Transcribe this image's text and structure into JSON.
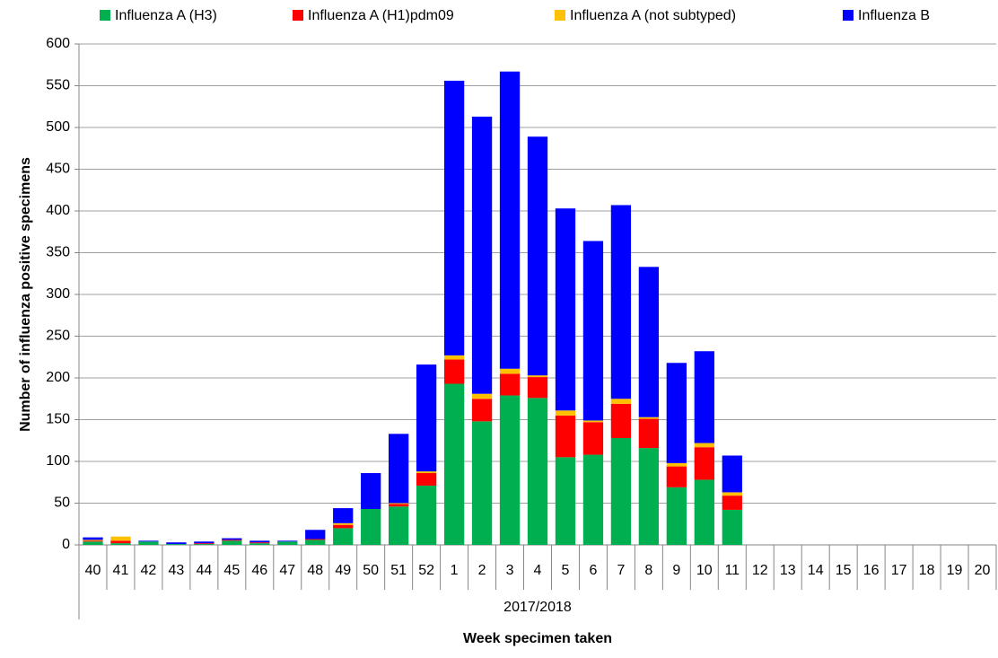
{
  "chart_data": {
    "type": "stacked_bar",
    "x_label": "Week specimen taken",
    "y_label": "Number of influenza positive specimens",
    "group_label": "2017/2018",
    "categories": [
      "40",
      "41",
      "42",
      "43",
      "44",
      "45",
      "46",
      "47",
      "48",
      "49",
      "50",
      "51",
      "52",
      "1",
      "2",
      "3",
      "4",
      "5",
      "6",
      "7",
      "8",
      "9",
      "10",
      "11",
      "12",
      "13",
      "14",
      "15",
      "16",
      "17",
      "18",
      "19",
      "20"
    ],
    "series": [
      {
        "name": "Influenza A (H3)",
        "color": "#00b050",
        "values": [
          4,
          2,
          4,
          1,
          1,
          5,
          2,
          4,
          6,
          20,
          43,
          46,
          71,
          193,
          148,
          179,
          176,
          105,
          108,
          128,
          116,
          69,
          78,
          42,
          null,
          null,
          null,
          null,
          null,
          null,
          null,
          null,
          null
        ]
      },
      {
        "name": "Influenza A (H1)pdm09",
        "color": "#ff0000",
        "values": [
          1,
          3,
          0,
          0,
          1,
          1,
          1,
          0,
          1,
          4,
          0,
          3,
          15,
          29,
          27,
          26,
          25,
          50,
          39,
          41,
          35,
          25,
          39,
          17,
          null,
          null,
          null,
          null,
          null,
          null,
          null,
          null,
          null
        ]
      },
      {
        "name": "Influenza A (not subtyped)",
        "color": "#ffc000",
        "values": [
          1,
          5,
          0,
          0,
          0,
          0,
          0,
          0,
          0,
          2,
          0,
          1,
          2,
          5,
          6,
          6,
          2,
          6,
          2,
          6,
          2,
          4,
          5,
          4,
          null,
          null,
          null,
          null,
          null,
          null,
          null,
          null,
          null
        ]
      },
      {
        "name": "Influenza B",
        "color": "#0000ff",
        "values": [
          3,
          0,
          1,
          2,
          2,
          2,
          2,
          1,
          11,
          18,
          43,
          83,
          128,
          329,
          332,
          356,
          286,
          242,
          215,
          232,
          180,
          120,
          110,
          44,
          null,
          null,
          null,
          null,
          null,
          null,
          null,
          null,
          null
        ]
      }
    ],
    "ylim": [
      0,
      600
    ],
    "yticks": [
      0,
      50,
      100,
      150,
      200,
      250,
      300,
      350,
      400,
      450,
      500,
      550,
      600
    ],
    "grid": true,
    "legend": "top"
  }
}
